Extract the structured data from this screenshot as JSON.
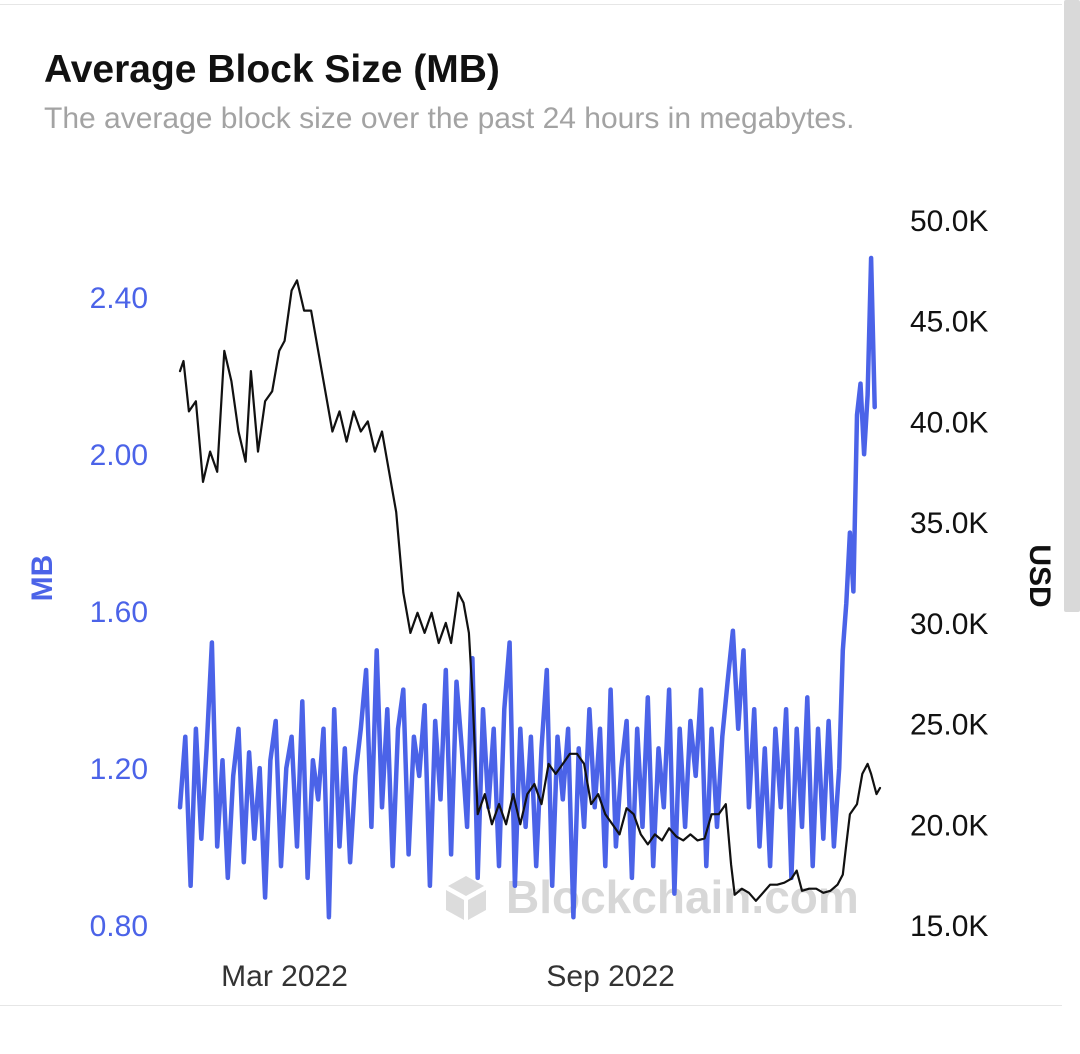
{
  "header": {
    "title": "Average Block Size (MB)",
    "subtitle": "The average block size over the past 24 hours in megabytes."
  },
  "watermark": {
    "text": "Blockchain.com"
  },
  "colors": {
    "primary_series": "#4b63e8",
    "secondary_series": "#111111",
    "title": "#111111",
    "subtitle": "#a3a3a3"
  },
  "chart_data": {
    "type": "line",
    "title": "Average Block Size (MB)",
    "subtitle": "The average block size over the past 24 hours in megabytes.",
    "xlabel": "",
    "ylabel": "MB",
    "y2label": "USD",
    "x_range": [
      "2022-01-01",
      "2023-01-31"
    ],
    "x_ticks": [
      {
        "date": "2022-03-01",
        "label": "Mar 2022"
      },
      {
        "date": "2022-09-01",
        "label": "Sep 2022"
      }
    ],
    "ylim": [
      0.8,
      2.5
    ],
    "y_ticks": [
      0.8,
      1.2,
      1.6,
      2.0,
      2.4
    ],
    "y_tick_labels": [
      "0.80",
      "1.20",
      "1.60",
      "2.00",
      "2.40"
    ],
    "y2lim": [
      15000,
      50000
    ],
    "y2_ticks": [
      15000,
      20000,
      25000,
      30000,
      35000,
      40000,
      45000,
      50000
    ],
    "y2_tick_labels": [
      "15.0K",
      "20.0K",
      "25.0K",
      "30.0K",
      "35.0K",
      "40.0K",
      "45.0K",
      "50.0K"
    ],
    "grid": false,
    "legend": "none",
    "series": [
      {
        "name": "MB",
        "axis": "left",
        "color": "#4b63e8",
        "points": [
          [
            "2022-01-01",
            1.1
          ],
          [
            "2022-01-04",
            1.28
          ],
          [
            "2022-01-07",
            0.9
          ],
          [
            "2022-01-10",
            1.3
          ],
          [
            "2022-01-13",
            1.02
          ],
          [
            "2022-01-16",
            1.25
          ],
          [
            "2022-01-19",
            1.52
          ],
          [
            "2022-01-22",
            1.0
          ],
          [
            "2022-01-25",
            1.22
          ],
          [
            "2022-01-28",
            0.92
          ],
          [
            "2022-01-31",
            1.18
          ],
          [
            "2022-02-03",
            1.3
          ],
          [
            "2022-02-06",
            0.96
          ],
          [
            "2022-02-09",
            1.24
          ],
          [
            "2022-02-12",
            1.02
          ],
          [
            "2022-02-15",
            1.2
          ],
          [
            "2022-02-18",
            0.87
          ],
          [
            "2022-02-21",
            1.22
          ],
          [
            "2022-02-24",
            1.32
          ],
          [
            "2022-02-27",
            0.95
          ],
          [
            "2022-03-02",
            1.2
          ],
          [
            "2022-03-05",
            1.28
          ],
          [
            "2022-03-08",
            1.0
          ],
          [
            "2022-03-11",
            1.37
          ],
          [
            "2022-03-14",
            0.92
          ],
          [
            "2022-03-17",
            1.22
          ],
          [
            "2022-03-20",
            1.12
          ],
          [
            "2022-03-23",
            1.3
          ],
          [
            "2022-03-26",
            0.82
          ],
          [
            "2022-03-29",
            1.35
          ],
          [
            "2022-04-01",
            1.0
          ],
          [
            "2022-04-04",
            1.25
          ],
          [
            "2022-04-07",
            0.96
          ],
          [
            "2022-04-10",
            1.18
          ],
          [
            "2022-04-13",
            1.3
          ],
          [
            "2022-04-16",
            1.45
          ],
          [
            "2022-04-19",
            1.05
          ],
          [
            "2022-04-22",
            1.5
          ],
          [
            "2022-04-25",
            1.1
          ],
          [
            "2022-04-28",
            1.35
          ],
          [
            "2022-05-01",
            0.95
          ],
          [
            "2022-05-04",
            1.3
          ],
          [
            "2022-05-07",
            1.4
          ],
          [
            "2022-05-10",
            0.98
          ],
          [
            "2022-05-13",
            1.28
          ],
          [
            "2022-05-16",
            1.18
          ],
          [
            "2022-05-19",
            1.36
          ],
          [
            "2022-05-22",
            0.9
          ],
          [
            "2022-05-25",
            1.32
          ],
          [
            "2022-05-28",
            1.12
          ],
          [
            "2022-05-31",
            1.45
          ],
          [
            "2022-06-03",
            0.98
          ],
          [
            "2022-06-06",
            1.42
          ],
          [
            "2022-06-09",
            1.25
          ],
          [
            "2022-06-12",
            1.05
          ],
          [
            "2022-06-15",
            1.48
          ],
          [
            "2022-06-18",
            0.92
          ],
          [
            "2022-06-21",
            1.35
          ],
          [
            "2022-06-24",
            1.1
          ],
          [
            "2022-06-27",
            1.3
          ],
          [
            "2022-06-30",
            0.95
          ],
          [
            "2022-07-03",
            1.35
          ],
          [
            "2022-07-06",
            1.52
          ],
          [
            "2022-07-09",
            0.9
          ],
          [
            "2022-07-12",
            1.3
          ],
          [
            "2022-07-15",
            1.05
          ],
          [
            "2022-07-18",
            1.28
          ],
          [
            "2022-07-21",
            0.95
          ],
          [
            "2022-07-24",
            1.25
          ],
          [
            "2022-07-27",
            1.45
          ],
          [
            "2022-07-30",
            0.9
          ],
          [
            "2022-08-02",
            1.28
          ],
          [
            "2022-08-05",
            1.12
          ],
          [
            "2022-08-08",
            1.3
          ],
          [
            "2022-08-11",
            0.82
          ],
          [
            "2022-08-14",
            1.25
          ],
          [
            "2022-08-17",
            1.05
          ],
          [
            "2022-08-20",
            1.35
          ],
          [
            "2022-08-23",
            1.1
          ],
          [
            "2022-08-26",
            1.3
          ],
          [
            "2022-08-29",
            0.95
          ],
          [
            "2022-09-01",
            1.4
          ],
          [
            "2022-09-04",
            1.0
          ],
          [
            "2022-09-07",
            1.2
          ],
          [
            "2022-09-10",
            1.32
          ],
          [
            "2022-09-13",
            0.92
          ],
          [
            "2022-09-16",
            1.3
          ],
          [
            "2022-09-19",
            1.05
          ],
          [
            "2022-09-22",
            1.38
          ],
          [
            "2022-09-25",
            0.95
          ],
          [
            "2022-09-28",
            1.25
          ],
          [
            "2022-10-01",
            1.1
          ],
          [
            "2022-10-04",
            1.4
          ],
          [
            "2022-10-07",
            0.88
          ],
          [
            "2022-10-10",
            1.3
          ],
          [
            "2022-10-13",
            1.05
          ],
          [
            "2022-10-16",
            1.32
          ],
          [
            "2022-10-19",
            1.18
          ],
          [
            "2022-10-22",
            1.4
          ],
          [
            "2022-10-25",
            0.95
          ],
          [
            "2022-10-28",
            1.3
          ],
          [
            "2022-10-31",
            1.05
          ],
          [
            "2022-11-03",
            1.28
          ],
          [
            "2022-11-06",
            1.42
          ],
          [
            "2022-11-09",
            1.55
          ],
          [
            "2022-11-12",
            1.3
          ],
          [
            "2022-11-15",
            1.5
          ],
          [
            "2022-11-18",
            1.1
          ],
          [
            "2022-11-21",
            1.35
          ],
          [
            "2022-11-24",
            1.0
          ],
          [
            "2022-11-27",
            1.25
          ],
          [
            "2022-11-30",
            0.95
          ],
          [
            "2022-12-03",
            1.3
          ],
          [
            "2022-12-06",
            1.1
          ],
          [
            "2022-12-09",
            1.35
          ],
          [
            "2022-12-12",
            0.92
          ],
          [
            "2022-12-15",
            1.3
          ],
          [
            "2022-12-18",
            1.05
          ],
          [
            "2022-12-21",
            1.38
          ],
          [
            "2022-12-24",
            0.95
          ],
          [
            "2022-12-27",
            1.3
          ],
          [
            "2022-12-30",
            1.02
          ],
          [
            "2023-01-02",
            1.32
          ],
          [
            "2023-01-05",
            1.0
          ],
          [
            "2023-01-08",
            1.2
          ],
          [
            "2023-01-10",
            1.5
          ],
          [
            "2023-01-12",
            1.62
          ],
          [
            "2023-01-14",
            1.8
          ],
          [
            "2023-01-16",
            1.65
          ],
          [
            "2023-01-18",
            2.1
          ],
          [
            "2023-01-20",
            2.18
          ],
          [
            "2023-01-22",
            2.0
          ],
          [
            "2023-01-24",
            2.15
          ],
          [
            "2023-01-26",
            2.5
          ],
          [
            "2023-01-28",
            2.12
          ]
        ]
      },
      {
        "name": "USD",
        "axis": "right",
        "color": "#111111",
        "points": [
          [
            "2022-01-01",
            42500
          ],
          [
            "2022-01-03",
            43000
          ],
          [
            "2022-01-06",
            40500
          ],
          [
            "2022-01-10",
            41000
          ],
          [
            "2022-01-14",
            37000
          ],
          [
            "2022-01-18",
            38500
          ],
          [
            "2022-01-22",
            37500
          ],
          [
            "2022-01-26",
            43500
          ],
          [
            "2022-01-30",
            42000
          ],
          [
            "2022-02-03",
            39500
          ],
          [
            "2022-02-07",
            38000
          ],
          [
            "2022-02-10",
            42500
          ],
          [
            "2022-02-14",
            38500
          ],
          [
            "2022-02-18",
            41000
          ],
          [
            "2022-02-22",
            41500
          ],
          [
            "2022-02-26",
            43500
          ],
          [
            "2022-03-01",
            44000
          ],
          [
            "2022-03-05",
            46500
          ],
          [
            "2022-03-08",
            47000
          ],
          [
            "2022-03-12",
            45500
          ],
          [
            "2022-03-16",
            45500
          ],
          [
            "2022-03-20",
            43500
          ],
          [
            "2022-03-24",
            41500
          ],
          [
            "2022-03-28",
            39500
          ],
          [
            "2022-04-01",
            40500
          ],
          [
            "2022-04-05",
            39000
          ],
          [
            "2022-04-09",
            40500
          ],
          [
            "2022-04-13",
            39500
          ],
          [
            "2022-04-17",
            40000
          ],
          [
            "2022-04-21",
            38500
          ],
          [
            "2022-04-25",
            39500
          ],
          [
            "2022-04-29",
            37500
          ],
          [
            "2022-05-03",
            35500
          ],
          [
            "2022-05-07",
            31500
          ],
          [
            "2022-05-11",
            29500
          ],
          [
            "2022-05-15",
            30500
          ],
          [
            "2022-05-19",
            29500
          ],
          [
            "2022-05-23",
            30500
          ],
          [
            "2022-05-27",
            29000
          ],
          [
            "2022-05-31",
            30000
          ],
          [
            "2022-06-03",
            29000
          ],
          [
            "2022-06-07",
            31500
          ],
          [
            "2022-06-10",
            31000
          ],
          [
            "2022-06-13",
            29500
          ],
          [
            "2022-06-15",
            26500
          ],
          [
            "2022-06-18",
            20500
          ],
          [
            "2022-06-22",
            21500
          ],
          [
            "2022-06-26",
            20000
          ],
          [
            "2022-06-30",
            21000
          ],
          [
            "2022-07-04",
            20000
          ],
          [
            "2022-07-08",
            21500
          ],
          [
            "2022-07-12",
            20000
          ],
          [
            "2022-07-16",
            21500
          ],
          [
            "2022-07-20",
            22000
          ],
          [
            "2022-07-24",
            21000
          ],
          [
            "2022-07-28",
            23000
          ],
          [
            "2022-08-01",
            22500
          ],
          [
            "2022-08-05",
            23000
          ],
          [
            "2022-08-09",
            23500
          ],
          [
            "2022-08-13",
            23500
          ],
          [
            "2022-08-17",
            23000
          ],
          [
            "2022-08-21",
            21000
          ],
          [
            "2022-08-25",
            21500
          ],
          [
            "2022-08-29",
            20500
          ],
          [
            "2022-09-02",
            20000
          ],
          [
            "2022-09-06",
            19500
          ],
          [
            "2022-09-10",
            20800
          ],
          [
            "2022-09-14",
            20500
          ],
          [
            "2022-09-18",
            19500
          ],
          [
            "2022-09-22",
            19000
          ],
          [
            "2022-09-26",
            19500
          ],
          [
            "2022-09-30",
            19200
          ],
          [
            "2022-10-04",
            19800
          ],
          [
            "2022-10-08",
            19400
          ],
          [
            "2022-10-12",
            19200
          ],
          [
            "2022-10-16",
            19500
          ],
          [
            "2022-10-20",
            19200
          ],
          [
            "2022-10-24",
            19300
          ],
          [
            "2022-10-28",
            20500
          ],
          [
            "2022-11-01",
            20500
          ],
          [
            "2022-11-05",
            21000
          ],
          [
            "2022-11-08",
            18000
          ],
          [
            "2022-11-10",
            16500
          ],
          [
            "2022-11-14",
            16800
          ],
          [
            "2022-11-18",
            16600
          ],
          [
            "2022-11-22",
            16200
          ],
          [
            "2022-11-26",
            16600
          ],
          [
            "2022-11-30",
            17000
          ],
          [
            "2022-12-04",
            17000
          ],
          [
            "2022-12-08",
            17100
          ],
          [
            "2022-12-12",
            17300
          ],
          [
            "2022-12-15",
            17700
          ],
          [
            "2022-12-18",
            16700
          ],
          [
            "2022-12-22",
            16800
          ],
          [
            "2022-12-26",
            16800
          ],
          [
            "2022-12-30",
            16600
          ],
          [
            "2023-01-03",
            16700
          ],
          [
            "2023-01-07",
            17000
          ],
          [
            "2023-01-10",
            17500
          ],
          [
            "2023-01-12",
            19000
          ],
          [
            "2023-01-14",
            20500
          ],
          [
            "2023-01-18",
            21000
          ],
          [
            "2023-01-21",
            22500
          ],
          [
            "2023-01-24",
            23000
          ],
          [
            "2023-01-26",
            22500
          ],
          [
            "2023-01-29",
            21500
          ],
          [
            "2023-01-31",
            21800
          ]
        ]
      }
    ]
  }
}
